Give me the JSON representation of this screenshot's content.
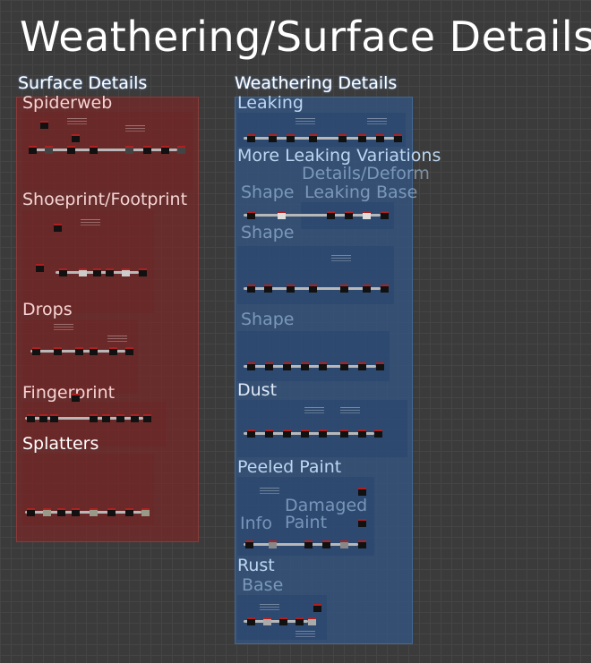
{
  "canvas": {
    "title": "Weathering/Surface Details:",
    "colors": {
      "background": "#3b3b3b",
      "surface_frame": "#782828",
      "weathering_frame": "#325582",
      "wire": "#b8b8b8"
    }
  },
  "surface_details": {
    "label": "Surface Details",
    "frames": [
      {
        "label": "Spiderweb"
      },
      {
        "label": "Shoeprint/Footprint"
      },
      {
        "label": "Drops"
      },
      {
        "label": "Fingerprint"
      },
      {
        "label": "Splatters"
      }
    ]
  },
  "weathering_details": {
    "label": "Weathering Details",
    "frames": [
      {
        "label": "Leaking"
      },
      {
        "label": "More Leaking Variations"
      },
      {
        "label": "Details/Deform"
      },
      {
        "label": "Leaking Base"
      },
      {
        "label": "Shape"
      },
      {
        "label": "Shape"
      },
      {
        "label": "Shape"
      },
      {
        "label": "Dust"
      },
      {
        "label": "Peeled Paint"
      },
      {
        "label": "Damaged Paint"
      },
      {
        "label": "Info"
      },
      {
        "label": "Rust"
      },
      {
        "label": "Base"
      }
    ]
  }
}
